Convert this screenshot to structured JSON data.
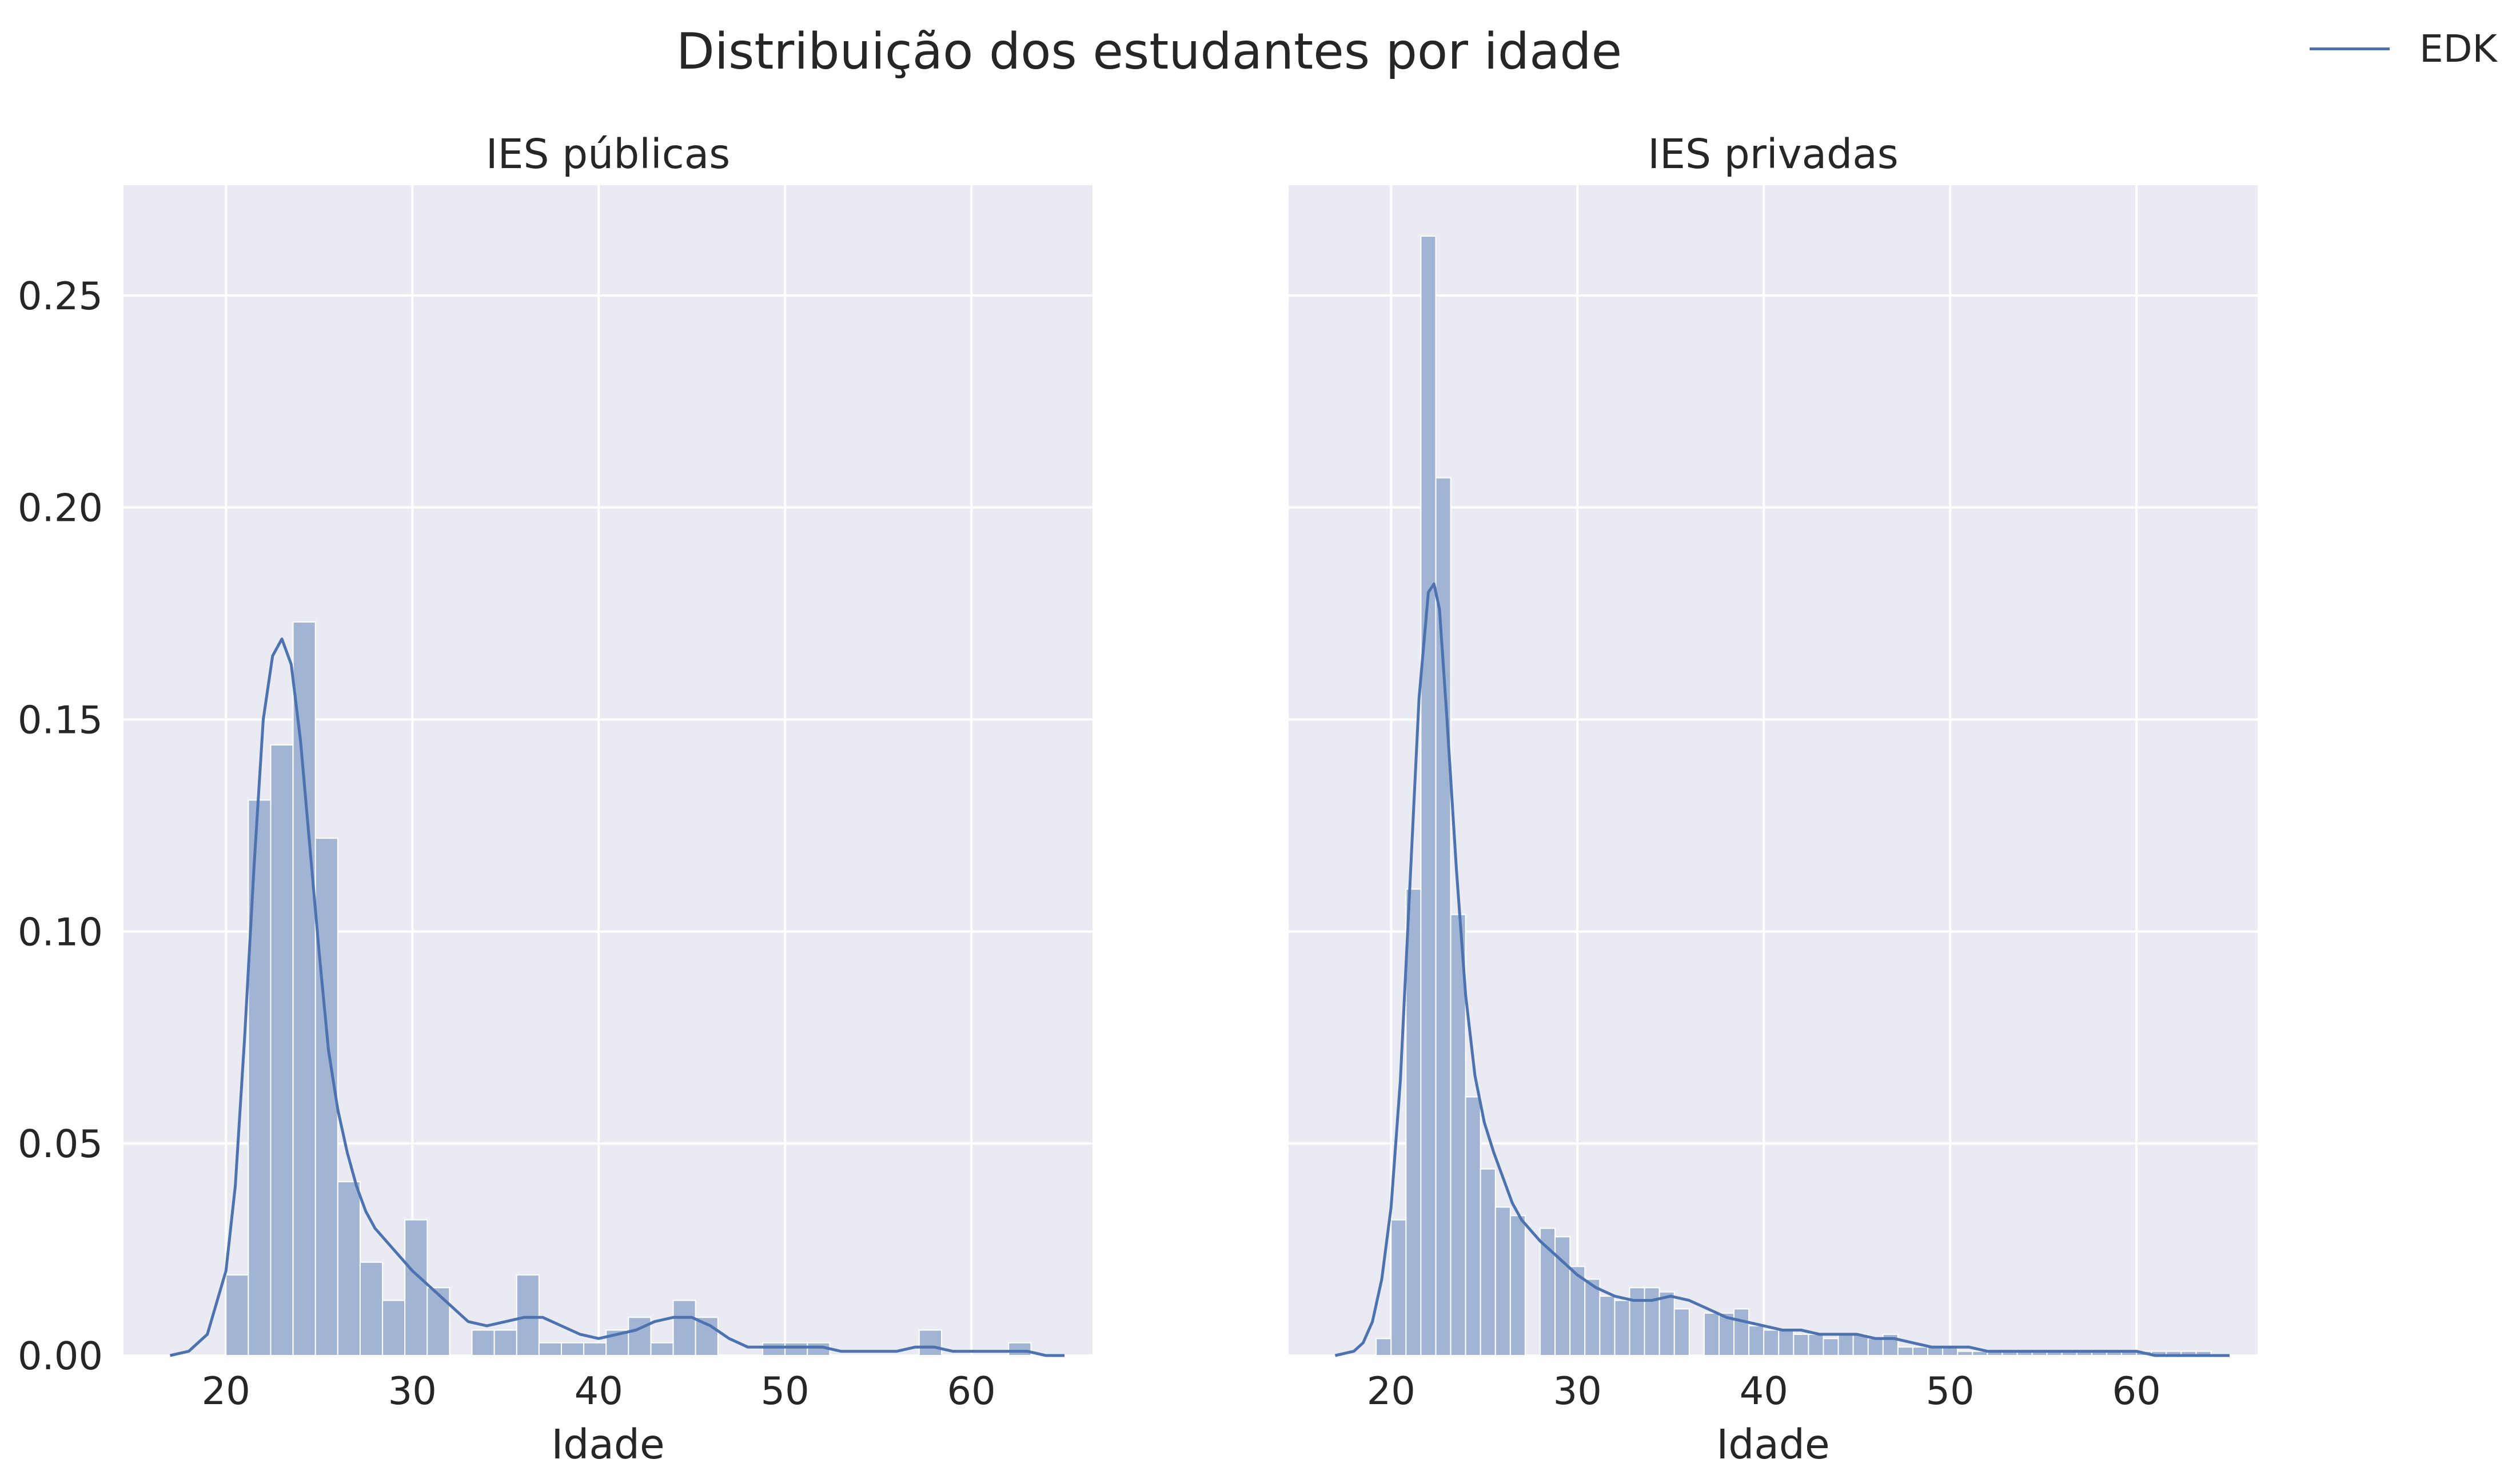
{
  "chart_data": {
    "title": "Distribuição dos estudantes por idade",
    "legend": {
      "position": "top-right",
      "entries": [
        {
          "label": "EDK",
          "color": "#4c72b0"
        }
      ]
    },
    "colors": {
      "hist_fill": "#a1b4d4",
      "kde_line": "#4c72b0",
      "plot_bg": "#eaeaf2",
      "grid": "#ffffff"
    },
    "grid": true,
    "panels": [
      {
        "type": "histogram+kde",
        "title": "IES públicas",
        "xlabel": "Idade",
        "ylabel": "",
        "xlim": [
          14.5,
          66.5
        ],
        "ylim": [
          0,
          0.276
        ],
        "xticks": [
          20,
          30,
          40,
          50,
          60
        ],
        "yticks": [
          0.0,
          0.05,
          0.1,
          0.15,
          0.2,
          0.25
        ],
        "ytick_labels": [
          "0.00",
          "0.05",
          "0.10",
          "0.15",
          "0.20",
          "0.25"
        ],
        "bin_edges": [
          20.0,
          21.2,
          22.4,
          23.6,
          24.8,
          26.0,
          27.2,
          28.4,
          29.6,
          30.8,
          32.0,
          33.2,
          34.4,
          35.6,
          36.8,
          38.0,
          39.2,
          40.4,
          41.6,
          42.8,
          44.0,
          45.2,
          46.4,
          47.6,
          48.8,
          50.0,
          51.2,
          52.4,
          53.6,
          54.8,
          56.0,
          57.2,
          58.4,
          59.6,
          60.8,
          62.0,
          63.2
        ],
        "bin_heights": [
          0.019,
          0.131,
          0.144,
          0.173,
          0.122,
          0.041,
          0.022,
          0.013,
          0.032,
          0.016,
          0.0,
          0.006,
          0.006,
          0.019,
          0.003,
          0.003,
          0.003,
          0.006,
          0.009,
          0.003,
          0.013,
          0.009,
          0.0,
          0.0,
          0.003,
          0.003,
          0.003,
          0.0,
          0.0,
          0.0,
          0.0,
          0.006,
          0.0,
          0.0,
          0.0,
          0.003
        ],
        "kde": {
          "x": [
            17.0,
            18.0,
            19.0,
            20.0,
            20.5,
            21.0,
            21.5,
            22.0,
            22.5,
            23.0,
            23.5,
            24.0,
            24.5,
            25.0,
            25.5,
            26.0,
            26.5,
            27.0,
            27.5,
            28.0,
            29.0,
            30.0,
            31.0,
            32.0,
            33.0,
            34.0,
            35.0,
            36.0,
            37.0,
            38.0,
            39.0,
            40.0,
            41.0,
            42.0,
            43.0,
            44.0,
            45.0,
            46.0,
            47.0,
            48.0,
            49.0,
            50.0,
            51.0,
            52.0,
            53.0,
            54.0,
            55.0,
            56.0,
            57.0,
            58.0,
            59.0,
            60.0,
            61.0,
            62.0,
            63.0,
            64.0,
            65.0
          ],
          "y": [
            0.0,
            0.001,
            0.005,
            0.02,
            0.04,
            0.075,
            0.115,
            0.15,
            0.165,
            0.169,
            0.163,
            0.145,
            0.12,
            0.095,
            0.072,
            0.058,
            0.048,
            0.04,
            0.034,
            0.03,
            0.025,
            0.02,
            0.016,
            0.012,
            0.008,
            0.007,
            0.008,
            0.009,
            0.009,
            0.007,
            0.005,
            0.004,
            0.005,
            0.006,
            0.008,
            0.009,
            0.009,
            0.007,
            0.004,
            0.002,
            0.002,
            0.002,
            0.002,
            0.002,
            0.001,
            0.001,
            0.001,
            0.001,
            0.002,
            0.002,
            0.001,
            0.001,
            0.001,
            0.001,
            0.001,
            0.0,
            0.0
          ]
        }
      },
      {
        "type": "histogram+kde",
        "title": "IES privadas",
        "xlabel": "Idade",
        "ylabel": "",
        "xlim": [
          14.5,
          66.5
        ],
        "ylim": [
          0,
          0.276
        ],
        "xticks": [
          20,
          30,
          40,
          50,
          60
        ],
        "yticks": [
          0.0,
          0.05,
          0.1,
          0.15,
          0.2,
          0.25
        ],
        "ytick_labels": [],
        "bin_edges": [
          19.2,
          20.0,
          20.8,
          21.6,
          22.4,
          23.2,
          24.0,
          24.8,
          25.6,
          26.4,
          27.2,
          28.0,
          28.8,
          29.6,
          30.4,
          31.2,
          32.0,
          32.8,
          33.6,
          34.4,
          35.2,
          36.0,
          36.8,
          37.6,
          38.4,
          39.2,
          40.0,
          40.8,
          41.6,
          42.4,
          43.2,
          44.0,
          44.8,
          45.6,
          46.4,
          47.2,
          48.0,
          48.8,
          49.6,
          50.4,
          51.2,
          52.0,
          52.8,
          53.6,
          54.4,
          55.2,
          56.0,
          56.8,
          57.6,
          58.4,
          59.2,
          60.0,
          60.8,
          61.6,
          62.4,
          63.2,
          64.0
        ],
        "bin_heights": [
          0.004,
          0.032,
          0.11,
          0.264,
          0.207,
          0.104,
          0.061,
          0.044,
          0.035,
          0.033,
          0.0,
          0.03,
          0.028,
          0.021,
          0.018,
          0.014,
          0.013,
          0.016,
          0.016,
          0.015,
          0.011,
          0.0,
          0.01,
          0.01,
          0.011,
          0.007,
          0.006,
          0.006,
          0.005,
          0.005,
          0.004,
          0.005,
          0.005,
          0.004,
          0.005,
          0.002,
          0.002,
          0.002,
          0.002,
          0.001,
          0.001,
          0.001,
          0.001,
          0.001,
          0.001,
          0.001,
          0.001,
          0.001,
          0.001,
          0.001,
          0.001,
          0.001,
          0.001,
          0.001,
          0.001,
          0.001
        ],
        "kde": {
          "x": [
            17.0,
            18.0,
            18.5,
            19.0,
            19.5,
            20.0,
            20.5,
            21.0,
            21.5,
            22.0,
            22.3,
            22.6,
            23.0,
            23.5,
            24.0,
            24.5,
            25.0,
            25.5,
            26.0,
            26.5,
            27.0,
            28.0,
            29.0,
            30.0,
            31.0,
            32.0,
            33.0,
            34.0,
            35.0,
            36.0,
            37.0,
            38.0,
            39.0,
            40.0,
            41.0,
            42.0,
            43.0,
            44.0,
            45.0,
            46.0,
            47.0,
            48.0,
            49.0,
            50.0,
            51.0,
            52.0,
            53.0,
            54.0,
            55.0,
            56.0,
            57.0,
            58.0,
            59.0,
            60.0,
            61.0,
            62.0,
            63.0,
            64.0,
            65.0
          ],
          "y": [
            0.0,
            0.001,
            0.003,
            0.008,
            0.018,
            0.035,
            0.065,
            0.11,
            0.155,
            0.18,
            0.182,
            0.176,
            0.15,
            0.115,
            0.085,
            0.066,
            0.055,
            0.048,
            0.042,
            0.036,
            0.032,
            0.027,
            0.023,
            0.019,
            0.016,
            0.014,
            0.013,
            0.013,
            0.014,
            0.013,
            0.011,
            0.009,
            0.008,
            0.007,
            0.006,
            0.006,
            0.005,
            0.005,
            0.005,
            0.004,
            0.004,
            0.003,
            0.002,
            0.002,
            0.002,
            0.001,
            0.001,
            0.001,
            0.001,
            0.001,
            0.001,
            0.001,
            0.001,
            0.001,
            0.0,
            0.0,
            0.0,
            0.0,
            0.0
          ]
        }
      }
    ]
  }
}
